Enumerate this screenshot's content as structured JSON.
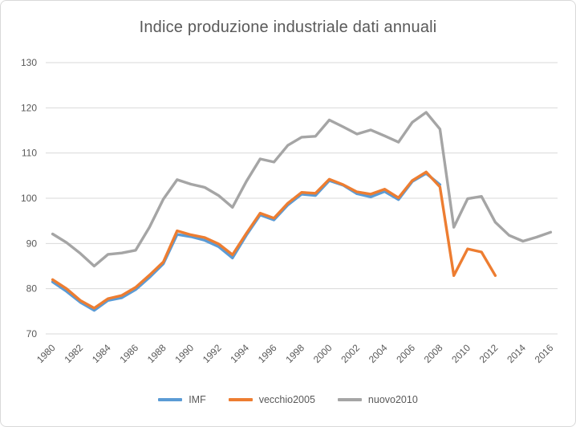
{
  "chart_data": {
    "type": "line",
    "title": "Indice produzione industriale dati annuali",
    "x": [
      1980,
      1981,
      1982,
      1983,
      1984,
      1985,
      1986,
      1987,
      1988,
      1989,
      1990,
      1991,
      1992,
      1993,
      1994,
      1995,
      1996,
      1997,
      1998,
      1999,
      2000,
      2001,
      2002,
      2003,
      2004,
      2005,
      2006,
      2007,
      2008,
      2009,
      2010,
      2011,
      2012,
      2013,
      2014,
      2015,
      2016
    ],
    "series": [
      {
        "name": "IMF",
        "color": "#5B9BD5",
        "values": [
          81.5,
          79.4,
          77.0,
          75.2,
          77.4,
          78.0,
          79.8,
          82.5,
          85.5,
          92.0,
          91.5,
          90.7,
          89.3,
          86.8,
          91.8,
          96.3,
          95.2,
          98.5,
          100.9,
          100.6,
          103.9,
          102.9,
          101.0,
          100.3,
          101.5,
          99.7,
          103.7,
          105.5,
          103.0
        ]
      },
      {
        "name": "vecchio2005",
        "color": "#ED7D31",
        "values": [
          82.0,
          80.0,
          77.4,
          75.7,
          77.8,
          78.5,
          80.3,
          83.0,
          85.9,
          92.8,
          91.9,
          91.3,
          89.9,
          87.5,
          92.2,
          96.7,
          95.6,
          98.9,
          101.3,
          101.1,
          104.2,
          103.0,
          101.4,
          100.9,
          102.0,
          100.1,
          103.9,
          105.8,
          102.5,
          82.9,
          88.8,
          88.1,
          82.9
        ]
      },
      {
        "name": "nuovo2010",
        "color": "#A5A5A5",
        "values": [
          92.1,
          90.2,
          87.8,
          85.0,
          87.6,
          87.9,
          88.5,
          93.6,
          99.8,
          104.1,
          103.1,
          102.4,
          100.6,
          98.0,
          103.7,
          108.7,
          108.0,
          111.7,
          113.5,
          113.7,
          117.3,
          115.8,
          114.2,
          115.1,
          113.8,
          112.4,
          116.8,
          119.0,
          115.3,
          93.6,
          99.9,
          100.4,
          94.7,
          91.8,
          90.5,
          91.4,
          92.5
        ]
      }
    ],
    "ylim": [
      70,
      130
    ],
    "yticks": [
      130,
      120,
      110,
      100,
      90,
      80,
      70
    ],
    "xtick_labels": [
      "1980",
      "1982",
      "1984",
      "1986",
      "1988",
      "1990",
      "1992",
      "1994",
      "1996",
      "1998",
      "2000",
      "2002",
      "2004",
      "2006",
      "2008",
      "2010",
      "2012",
      "2014",
      "2016"
    ],
    "xtick_step": 2,
    "grid": true,
    "legend_position": "bottom",
    "text_color": "#595959",
    "gridline_color": "#D9D9D9"
  }
}
